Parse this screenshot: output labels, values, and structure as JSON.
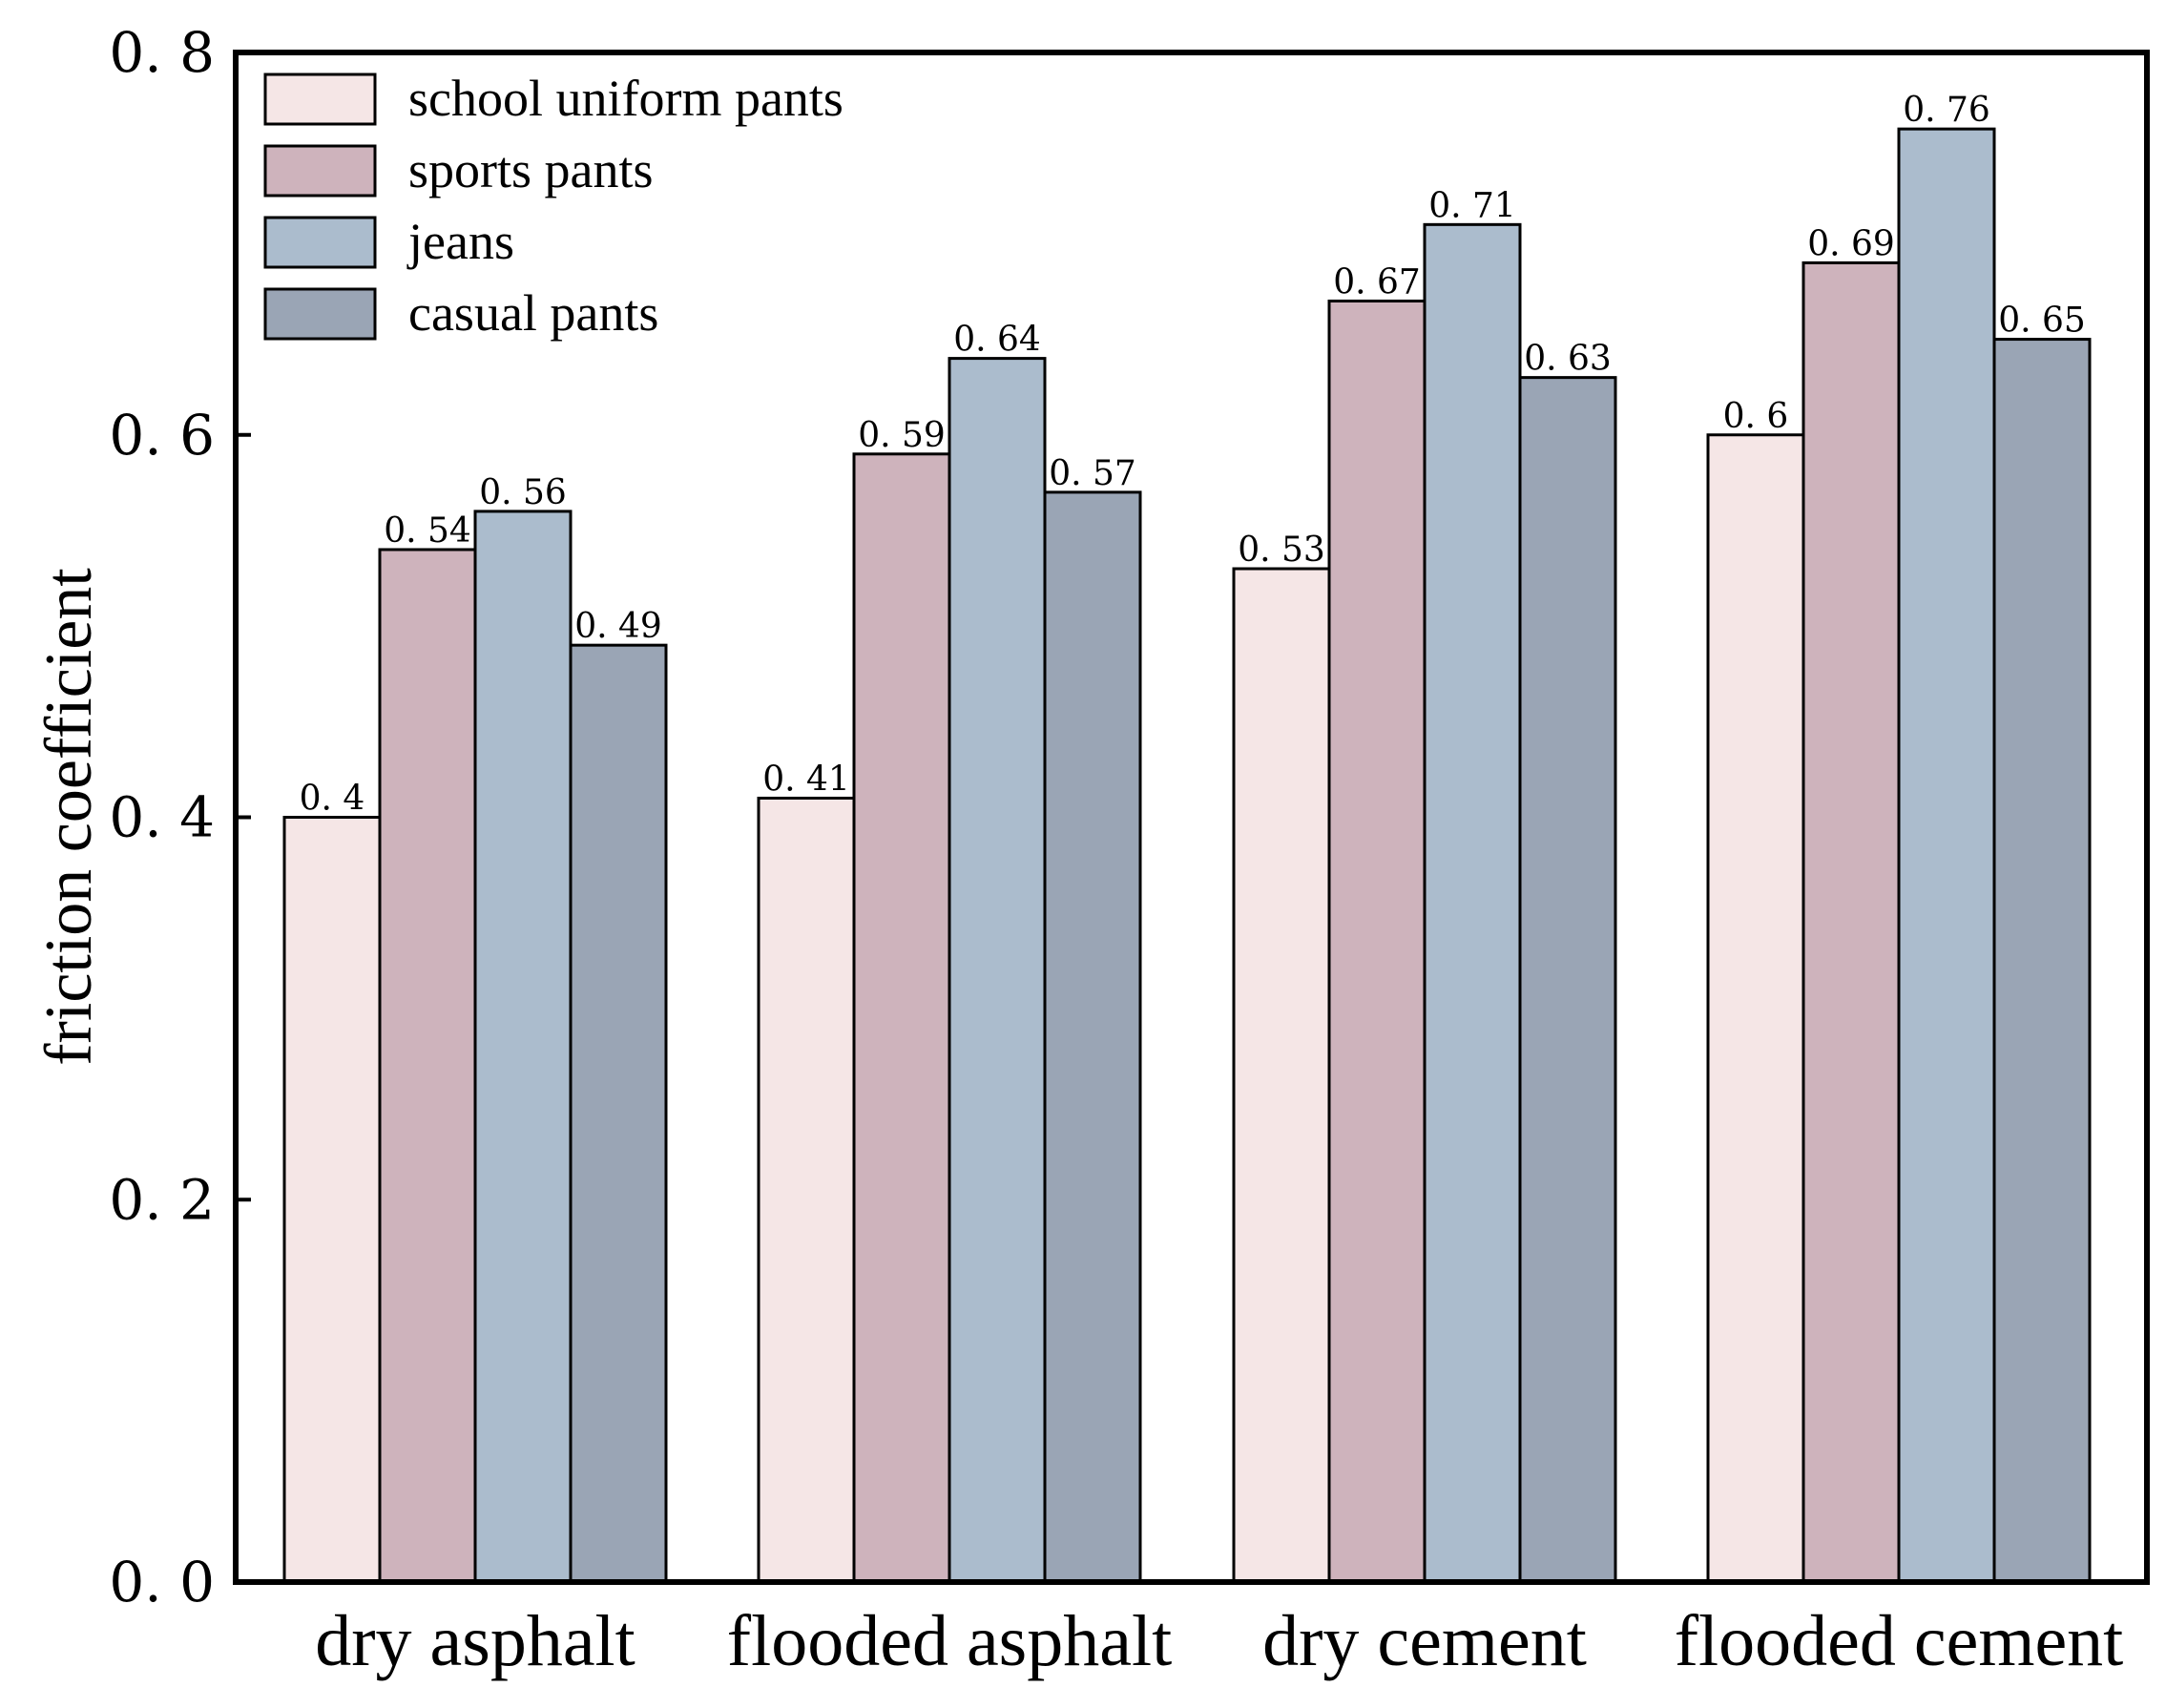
{
  "chart_data": {
    "type": "bar",
    "title": "",
    "xlabel": "",
    "ylabel": "friction coefficient",
    "ylim": [
      0,
      0.8
    ],
    "yticks": [
      {
        "value": 0.0,
        "label": "0. 0"
      },
      {
        "value": 0.2,
        "label": "0. 2"
      },
      {
        "value": 0.4,
        "label": "0. 4"
      },
      {
        "value": 0.6,
        "label": "0. 6"
      },
      {
        "value": 0.8,
        "label": "0. 8"
      }
    ],
    "grid": false,
    "legend_position": "top-left",
    "categories": [
      "dry asphalt",
      "flooded asphalt",
      "dry cement",
      "flooded cement"
    ],
    "series": [
      {
        "name": "school uniform pants",
        "color": "#f5e6e6",
        "values": [
          0.4,
          0.41,
          0.53,
          0.6
        ],
        "labels": [
          "0. 4",
          "0. 41",
          "0. 53",
          "0. 6"
        ]
      },
      {
        "name": "sports pants",
        "color": "#ceb3bc",
        "values": [
          0.54,
          0.59,
          0.67,
          0.69
        ],
        "labels": [
          "0. 54",
          "0. 59",
          "0. 67",
          "0. 69"
        ]
      },
      {
        "name": "jeans",
        "color": "#abbccd",
        "values": [
          0.56,
          0.64,
          0.71,
          0.76
        ],
        "labels": [
          "0. 56",
          "0. 64",
          "0. 71",
          "0. 76"
        ]
      },
      {
        "name": "casual pants",
        "color": "#9aa5b5",
        "values": [
          0.49,
          0.57,
          0.63,
          0.65
        ],
        "labels": [
          "0. 49",
          "0. 57",
          "0. 63",
          "0. 65"
        ]
      }
    ]
  }
}
